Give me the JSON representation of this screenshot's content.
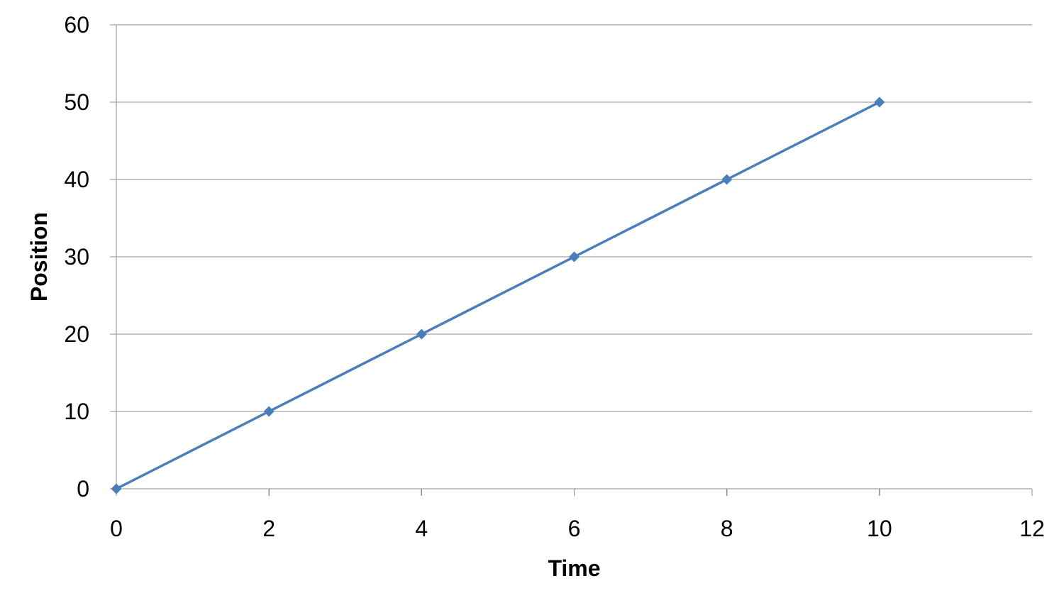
{
  "chart_data": {
    "type": "line",
    "title": "",
    "xlabel": "Time",
    "ylabel": "Position",
    "xlim": [
      0,
      12
    ],
    "ylim": [
      0,
      60
    ],
    "x_ticks": [
      0,
      2,
      4,
      6,
      8,
      10,
      12
    ],
    "y_ticks": [
      0,
      10,
      20,
      30,
      40,
      50,
      60
    ],
    "grid": {
      "horizontal": true,
      "vertical": false
    },
    "legend": "none",
    "marker": "diamond",
    "series": [
      {
        "color": "#4a7ebb",
        "x": [
          0,
          2,
          4,
          6,
          8,
          10
        ],
        "y": [
          0,
          10,
          20,
          30,
          40,
          50
        ]
      }
    ]
  }
}
